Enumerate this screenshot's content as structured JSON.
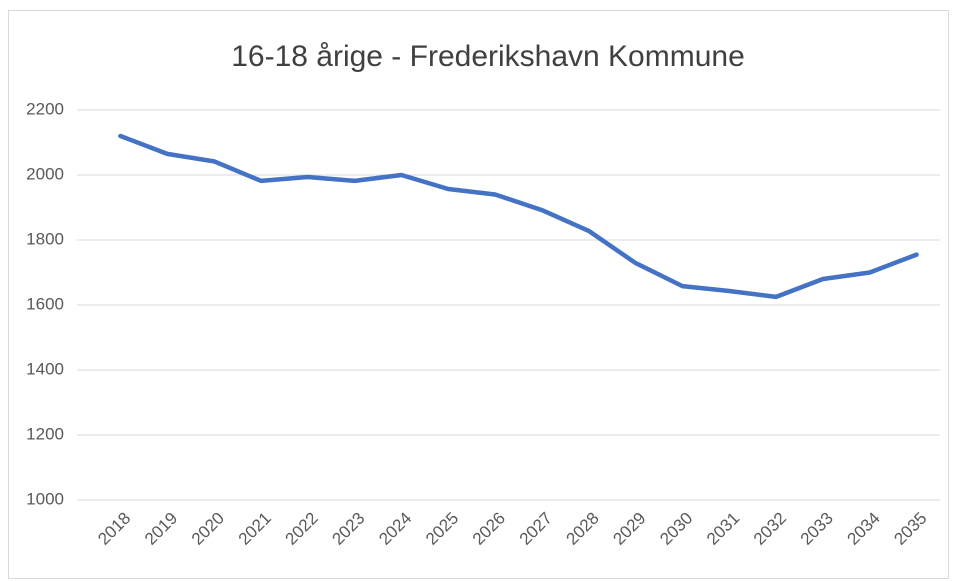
{
  "chart_data": {
    "type": "line",
    "title": "16-18 årige - Frederikshavn Kommune",
    "categories": [
      "2018",
      "2019",
      "2020",
      "2021",
      "2022",
      "2023",
      "2024",
      "2025",
      "2026",
      "2027",
      "2028",
      "2029",
      "2030",
      "2031",
      "2032",
      "2033",
      "2034",
      "2035"
    ],
    "series": [
      {
        "color": "#4472c4",
        "values": [
          2120,
          2065,
          2042,
          1982,
          1994,
          1982,
          2000,
          1957,
          1940,
          1892,
          1828,
          1729,
          1658,
          1643,
          1625,
          1680,
          1700,
          1755
        ]
      }
    ],
    "ylim": [
      1000,
      2200
    ],
    "yticks": [
      1000,
      1200,
      1400,
      1600,
      1800,
      2000,
      2200
    ],
    "grid": true
  }
}
